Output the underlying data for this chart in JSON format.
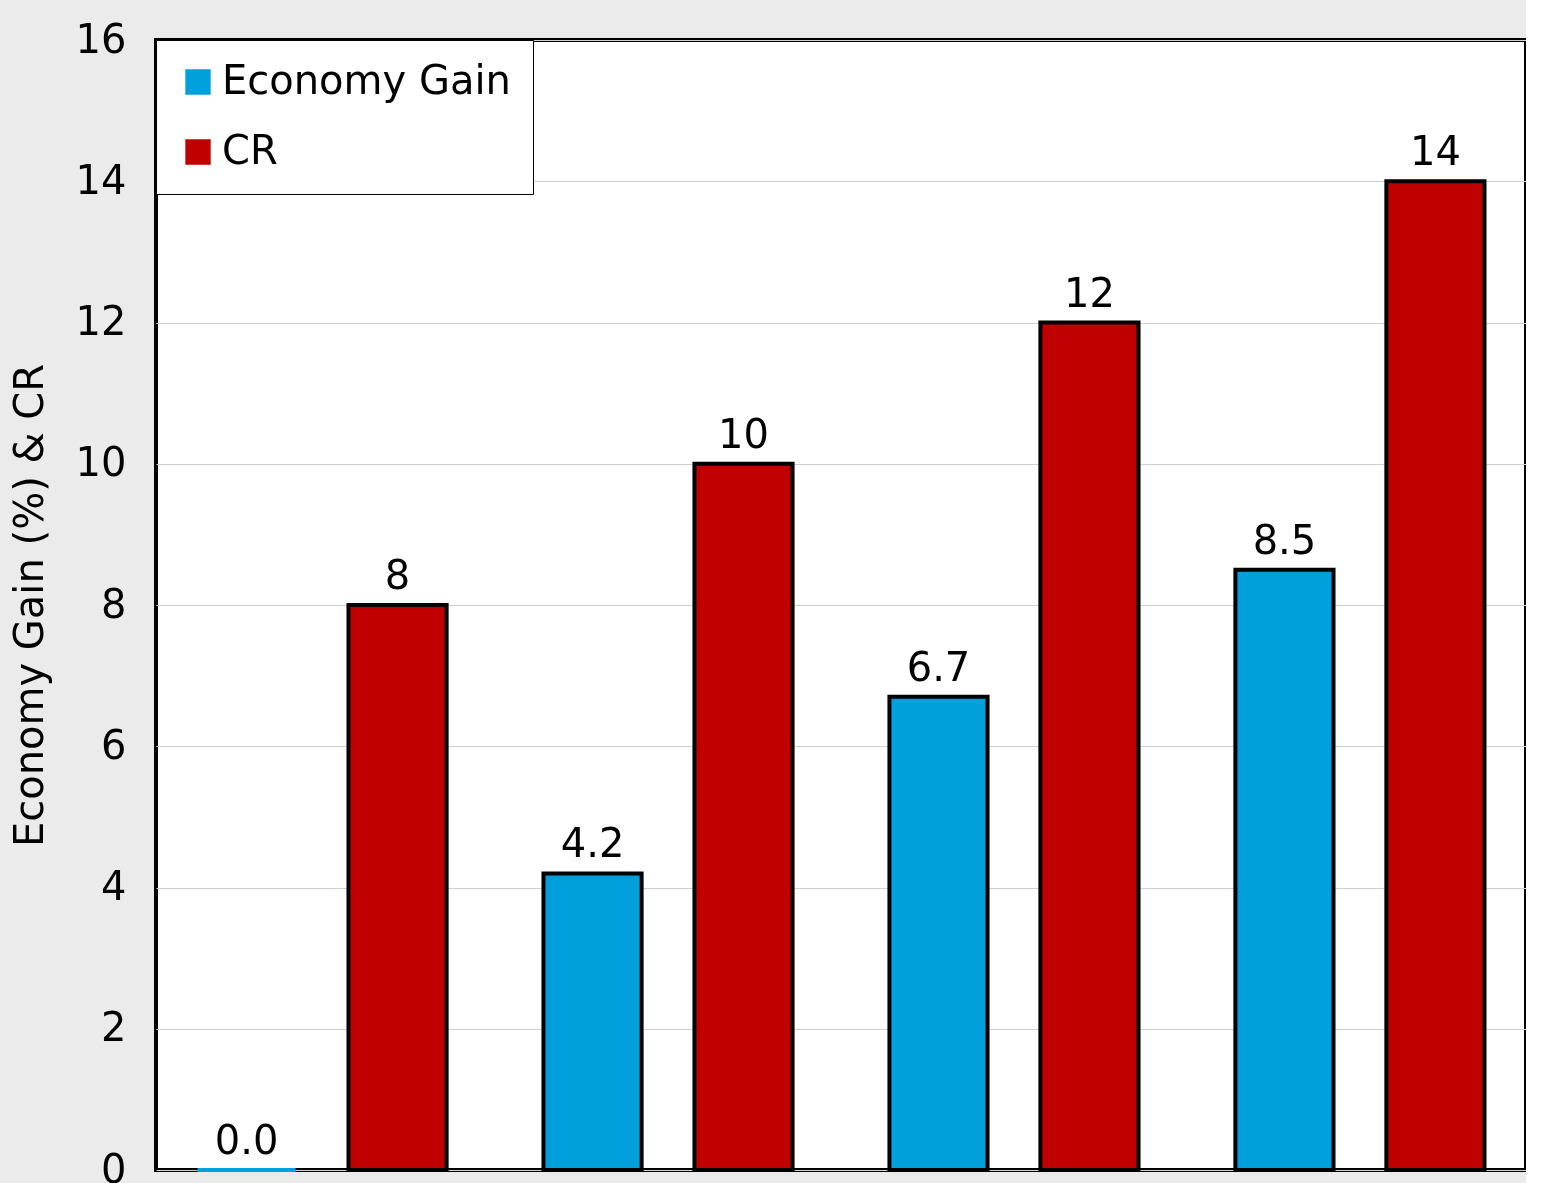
{
  "chart_data": {
    "type": "bar",
    "ylabel": "Economy Gain (%) & CR",
    "categories": [
      null,
      null,
      null,
      null
    ],
    "series": [
      {
        "name": "Economy Gain",
        "color": "#00a0dc",
        "values": [
          0.0,
          4.2,
          6.7,
          8.5
        ],
        "value_labels": [
          "0.0",
          "4.2",
          "6.7",
          "8.5"
        ]
      },
      {
        "name": "CR",
        "color": "#c00000",
        "values": [
          8,
          10,
          12,
          14
        ],
        "value_labels": [
          "8",
          "10",
          "12",
          "14"
        ]
      }
    ],
    "ylim": [
      0,
      16
    ],
    "yticks": [
      0,
      2,
      4,
      6,
      8,
      10,
      12,
      14,
      16
    ],
    "grid": "y",
    "legend": "top left",
    "tick_labels": "y"
  }
}
